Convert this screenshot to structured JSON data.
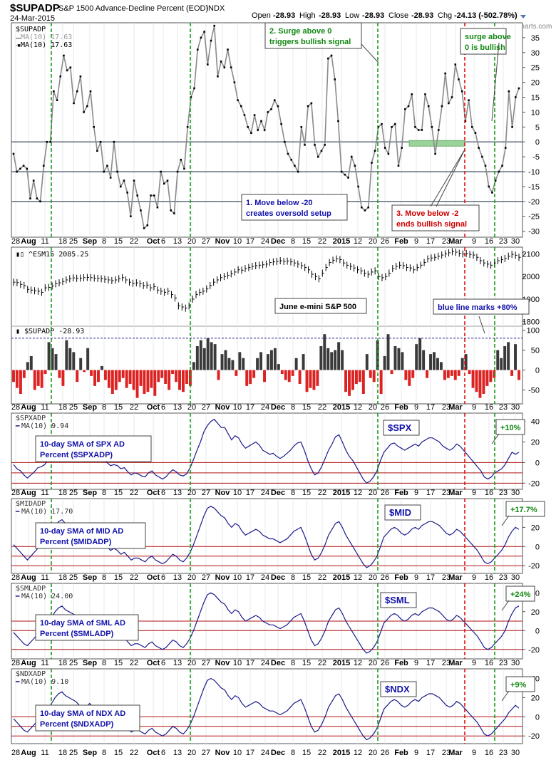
{
  "header": {
    "symbol": "$SUPADP",
    "description": "S&P 1500 Advance-Decline Percent (EOD)",
    "exchange": "INDX",
    "date": "24-Mar-2015",
    "open_label": "Open",
    "open": "-28.93",
    "high_label": "High",
    "high": "-28.93",
    "low_label": "Low",
    "low": "-28.93",
    "close_label": "Close",
    "close": "-28.93",
    "chg_label": "Chg",
    "chg": "-24.13 (-502.78%)",
    "watermark": "@StockCharts.com"
  },
  "colors": {
    "main_line": "#8a8a8a",
    "sma_line": "#1b1b8a",
    "green_vline": "#1a9a1a",
    "red_vline": "#dd1111",
    "hist_pos": "#3a3a3a",
    "hist_neg": "#dd2222",
    "ref_red": "#b01010",
    "annot_blue": "#1111aa",
    "annot_red": "#cc0000",
    "annot_green": "#118811",
    "green_box": "#9ad39a"
  },
  "x_axis_labels": [
    "28",
    "Aug",
    "11",
    "18",
    "25",
    "Sep",
    "8",
    "15",
    "22",
    "Oct",
    "6",
    "13",
    "20",
    "27",
    "Nov",
    "10",
    "17",
    "24",
    "Dec",
    "8",
    "15",
    "22",
    "2015",
    "12",
    "20",
    "26",
    "Feb",
    "9",
    "17",
    "23",
    "Mar",
    "9",
    "16",
    "23",
    "30"
  ],
  "chart_data": [
    {
      "panel": "main",
      "type": "line",
      "title": "$SUPADP",
      "legend": [
        "$SUPADP",
        "MA(10) 17.63",
        "MA(10) 17.63"
      ],
      "y_ticks": [
        "35",
        "30",
        "25",
        "20",
        "15",
        "10",
        "5",
        "0",
        "-5",
        "-10",
        "-15",
        "-20",
        "-25",
        "-30"
      ],
      "ylim": [
        -32,
        40
      ],
      "reference_lines": [
        0,
        -10,
        -20
      ],
      "values": [
        -4,
        -10,
        -9,
        -8,
        -9,
        -19,
        -13,
        -19,
        -20,
        -8,
        0,
        0,
        17,
        14,
        22,
        29,
        24,
        25,
        13,
        17,
        22,
        10,
        12,
        17,
        5,
        -3,
        0,
        -10,
        -8,
        -12,
        0,
        -10,
        -15,
        -13,
        -17,
        -25,
        -13,
        -18,
        -23,
        -29,
        -28,
        -18,
        -18,
        -22,
        -10,
        -14,
        -13,
        -23,
        -24,
        -10,
        -6,
        -9,
        5,
        15,
        18,
        31,
        35,
        37,
        26,
        34,
        39,
        22,
        27,
        25,
        31,
        25,
        20,
        14,
        12,
        9,
        5,
        3,
        9,
        4,
        7,
        4,
        10,
        11,
        14,
        12,
        6,
        0,
        -4,
        -6,
        -8,
        -10,
        5,
        -1,
        12,
        13,
        -1,
        -5,
        -3,
        -1,
        28,
        29,
        21,
        7,
        -10,
        -11,
        -12,
        -5,
        -8,
        -15,
        -22,
        -23,
        -22,
        -7,
        -3,
        5,
        6,
        -2,
        -4,
        5,
        6,
        -8,
        -2,
        11,
        12,
        16,
        5,
        4,
        4,
        16,
        12,
        5,
        -4,
        4,
        12,
        23,
        13,
        15,
        26,
        21,
        17,
        7,
        14,
        5,
        3,
        -2,
        -5,
        -8,
        -15,
        -17,
        -13,
        -10,
        -8,
        -2,
        17,
        5,
        15,
        18
      ],
      "annotations": [
        {
          "text": "2. Surge above 0 triggers bullish signal",
          "lines": [
            "2. Surge above 0",
            "triggers bullish signal"
          ],
          "color": "green"
        },
        {
          "text": "surge above 0 is bullish",
          "lines": [
            "surge above",
            "0 is bullish"
          ],
          "color": "green"
        },
        {
          "text": "1. Move below -20 creates oversold setup",
          "lines": [
            "1. Move below -20",
            "creates oversold setup"
          ],
          "color": "blue"
        },
        {
          "text": "3. Move below -2 ends bullish signal",
          "lines": [
            "3. Move below -2",
            "ends bullish signal"
          ],
          "color": "red"
        }
      ]
    },
    {
      "panel": "price",
      "type": "ohlc",
      "title": "^ESM15 2085.25",
      "y_ticks": [
        "2100",
        "2000",
        "1900",
        "1800"
      ],
      "ylim": [
        1780,
        2130
      ],
      "values": [
        1975,
        1973,
        1965,
        1960,
        1943,
        1940,
        1937,
        1935,
        1930,
        1950,
        1952,
        1958,
        1968,
        1972,
        1978,
        1985,
        1990,
        1994,
        1992,
        1993,
        1995,
        1996,
        1995,
        1993,
        1992,
        1990,
        1988,
        1985,
        1982,
        1985,
        1990,
        1995,
        1985,
        1975,
        1970,
        1972,
        1968,
        1960,
        1962,
        1950,
        1955,
        1940,
        1935,
        1930,
        1935,
        1920,
        1905,
        1870,
        1865,
        1860,
        1870,
        1900,
        1920,
        1930,
        1935,
        1945,
        1960,
        1975,
        1985,
        1995,
        2000,
        2005,
        2012,
        2020,
        2030,
        2028,
        2035,
        2040,
        2045,
        2048,
        2050,
        2052,
        2055,
        2062,
        2065,
        2067,
        2070,
        2067,
        2068,
        2065,
        2060,
        2055,
        2048,
        2040,
        2030,
        2010,
        2000,
        1990,
        2015,
        2040,
        2062,
        2072,
        2078,
        2075,
        2060,
        2050,
        2045,
        2038,
        2030,
        2025,
        2015,
        2010,
        2020,
        2025,
        2000,
        1995,
        2000,
        2015,
        2035,
        2045,
        2050,
        2048,
        2040,
        2038,
        2030,
        2040,
        2050,
        2062,
        2078,
        2082,
        2085,
        2090,
        2095,
        2100,
        2105,
        2110,
        2108,
        2103,
        2100,
        2102,
        2098,
        2095,
        2085,
        2070,
        2060,
        2055,
        2050,
        2060,
        2070,
        2075,
        2080,
        2090,
        2098,
        2094,
        2085
      ],
      "annotations": [
        {
          "text": "June e-mini S&P 500",
          "color": "black"
        },
        {
          "text": "blue line marks +80%",
          "color": "blue"
        }
      ]
    },
    {
      "panel": "histogram",
      "type": "bar",
      "title": "$SUPADP -28.93",
      "y_ticks": [
        "100",
        "50",
        "0",
        "-50"
      ],
      "ylim": [
        -85,
        110
      ],
      "reference_lines": [
        80
      ],
      "values": [
        -30,
        -45,
        -60,
        -20,
        20,
        35,
        -50,
        -40,
        -45,
        -10,
        70,
        55,
        40,
        -20,
        -40,
        75,
        55,
        45,
        -30,
        30,
        -5,
        55,
        -15,
        -40,
        -30,
        10,
        -25,
        -45,
        -60,
        -50,
        -30,
        -20,
        -45,
        -35,
        -50,
        -70,
        -40,
        -60,
        -55,
        -45,
        -65,
        -30,
        -20,
        -35,
        -50,
        -10,
        -30,
        -50,
        -55,
        -35,
        -40,
        20,
        60,
        75,
        55,
        80,
        70,
        65,
        -25,
        40,
        50,
        30,
        25,
        -15,
        45,
        30,
        -40,
        -35,
        -20,
        30,
        45,
        -30,
        40,
        50,
        55,
        15,
        -10,
        -25,
        -30,
        -15,
        30,
        -35,
        40,
        -55,
        -45,
        -50,
        -40,
        60,
        90,
        55,
        45,
        50,
        70,
        50,
        -55,
        -65,
        -50,
        -35,
        -30,
        -60,
        40,
        -20,
        -30,
        75,
        -60,
        35,
        90,
        -10,
        60,
        55,
        45,
        -25,
        -40,
        -20,
        65,
        80,
        50,
        -20,
        40,
        45,
        30,
        20,
        -25,
        -20,
        -15,
        -25,
        -15,
        30,
        40,
        -10,
        -45,
        -55,
        -70,
        -60,
        -40,
        -30,
        -20,
        50,
        30,
        60,
        70,
        -15,
        65,
        -25
      ],
      "annotations": []
    },
    {
      "panel": "spx",
      "type": "line",
      "title": "$SPXADP",
      "legend": [
        "$SPXADP",
        "MA(10) 9.94"
      ],
      "label": "$SPX",
      "change": "+10%",
      "y_ticks": [
        "40",
        "20",
        "0",
        "-20"
      ],
      "ylim": [
        -26,
        48
      ],
      "reference_lines": [
        0,
        -10,
        -20
      ],
      "values": [
        -2,
        -6,
        -8,
        -12,
        -15,
        -12,
        -9,
        -5,
        -4,
        -2,
        3,
        9,
        14,
        18,
        19,
        17,
        15,
        15,
        12,
        8,
        6,
        9,
        12,
        8,
        6,
        4,
        3,
        0,
        -3,
        -2,
        -3,
        -6,
        -5,
        -9,
        -12,
        -10,
        -11,
        -13,
        -14,
        -10,
        -8,
        -12,
        -14,
        -16,
        -14,
        -10,
        -7,
        -9,
        -12,
        -13,
        -11,
        -5,
        3,
        12,
        20,
        30,
        36,
        40,
        42,
        38,
        34,
        34,
        28,
        22,
        26,
        24,
        18,
        14,
        16,
        18,
        20,
        17,
        12,
        10,
        8,
        9,
        6,
        4,
        6,
        9,
        12,
        16,
        19,
        20,
        12,
        2,
        -6,
        -12,
        -10,
        -4,
        4,
        12,
        18,
        25,
        27,
        20,
        12,
        6,
        2,
        -4,
        -10,
        -16,
        -20,
        -18,
        -14,
        -8,
        2,
        10,
        14,
        18,
        19,
        16,
        14,
        12,
        14,
        16,
        18,
        16,
        20,
        22,
        24,
        24,
        22,
        20,
        16,
        14,
        12,
        14,
        18,
        16,
        12,
        8,
        4,
        0,
        -4,
        -8,
        -14,
        -16,
        -14,
        -10,
        -8,
        -6,
        -2,
        4,
        10,
        8,
        10
      ]
    },
    {
      "panel": "mid",
      "type": "line",
      "title": "$MIDADP",
      "legend": [
        "$MIDADP",
        "MA(10) 17.70"
      ],
      "label": "$MID",
      "change": "+17.7%",
      "y_ticks": [
        "40",
        "20",
        "0",
        "-20"
      ],
      "ylim": [
        -28,
        50
      ],
      "reference_lines": [
        0,
        -10,
        -20
      ],
      "values": [
        2,
        -2,
        -6,
        -10,
        -14,
        -10,
        -6,
        -2,
        0,
        4,
        10,
        16,
        22,
        26,
        28,
        24,
        22,
        20,
        18,
        14,
        10,
        12,
        16,
        12,
        8,
        6,
        4,
        0,
        -4,
        -2,
        -4,
        -8,
        -6,
        -10,
        -14,
        -12,
        -12,
        -14,
        -16,
        -12,
        -10,
        -14,
        -16,
        -18,
        -16,
        -12,
        -8,
        -10,
        -14,
        -16,
        -12,
        -6,
        2,
        12,
        22,
        32,
        40,
        42,
        40,
        36,
        32,
        30,
        24,
        20,
        24,
        22,
        16,
        12,
        14,
        16,
        18,
        16,
        12,
        10,
        8,
        8,
        6,
        4,
        6,
        8,
        12,
        16,
        18,
        20,
        12,
        2,
        -8,
        -14,
        -12,
        -6,
        2,
        12,
        18,
        24,
        26,
        20,
        12,
        6,
        0,
        -6,
        -12,
        -18,
        -22,
        -20,
        -16,
        -10,
        0,
        10,
        14,
        18,
        20,
        18,
        14,
        12,
        14,
        18,
        20,
        18,
        22,
        24,
        26,
        26,
        24,
        22,
        18,
        14,
        12,
        14,
        18,
        16,
        12,
        8,
        4,
        0,
        -4,
        -10,
        -16,
        -18,
        -16,
        -12,
        -8,
        -4,
        2,
        10,
        16,
        20,
        18
      ]
    },
    {
      "panel": "sml",
      "type": "line",
      "title": "$SMLADP",
      "legend": [
        "$SMLADP",
        "MA(10) 24.00"
      ],
      "label": "$SML",
      "change": "+24%",
      "y_ticks": [
        "40",
        "20",
        "0",
        "-20"
      ],
      "ylim": [
        -30,
        50
      ],
      "reference_lines": [
        10,
        0,
        -20
      ],
      "values": [
        -2,
        -6,
        -10,
        -14,
        -16,
        -12,
        -8,
        -4,
        -2,
        2,
        8,
        14,
        20,
        24,
        26,
        22,
        20,
        18,
        16,
        12,
        8,
        10,
        14,
        10,
        6,
        4,
        2,
        -2,
        -6,
        -4,
        -6,
        -10,
        -8,
        -12,
        -16,
        -14,
        -14,
        -16,
        -18,
        -14,
        -12,
        -16,
        -18,
        -20,
        -18,
        -14,
        -10,
        -12,
        -16,
        -18,
        -14,
        -8,
        0,
        10,
        20,
        30,
        38,
        40,
        38,
        34,
        30,
        28,
        22,
        18,
        22,
        20,
        14,
        10,
        12,
        14,
        16,
        14,
        10,
        8,
        6,
        6,
        4,
        2,
        4,
        6,
        10,
        14,
        16,
        18,
        10,
        0,
        -10,
        -16,
        -14,
        -8,
        0,
        10,
        16,
        22,
        24,
        18,
        10,
        4,
        -2,
        -8,
        -14,
        -20,
        -24,
        -22,
        -18,
        -12,
        -2,
        8,
        12,
        16,
        18,
        16,
        12,
        10,
        12,
        16,
        18,
        16,
        20,
        22,
        24,
        24,
        22,
        20,
        16,
        12,
        10,
        12,
        16,
        14,
        10,
        6,
        2,
        -2,
        -6,
        -12,
        -18,
        -20,
        -18,
        -14,
        -10,
        -6,
        0,
        10,
        18,
        24,
        26
      ]
    },
    {
      "panel": "ndx",
      "type": "line",
      "title": "$NDXADP",
      "legend": [
        "$NDXADP",
        "MA(10) 9.10"
      ],
      "label": "$NDX",
      "change": "+9%",
      "y_ticks": [
        "40",
        "20",
        "0",
        "-20"
      ],
      "ylim": [
        -28,
        50
      ],
      "reference_lines": [
        0,
        -10,
        -20
      ],
      "values": [
        -2,
        -6,
        -10,
        -14,
        -16,
        -12,
        -8,
        -4,
        -2,
        2,
        8,
        14,
        20,
        24,
        26,
        22,
        20,
        18,
        16,
        12,
        8,
        10,
        14,
        10,
        6,
        4,
        2,
        -2,
        -6,
        -4,
        -6,
        -10,
        -8,
        -12,
        -16,
        -14,
        -14,
        -16,
        -18,
        -14,
        -12,
        -16,
        -18,
        -20,
        -18,
        -14,
        -10,
        -12,
        -16,
        -18,
        -14,
        -8,
        0,
        10,
        20,
        30,
        38,
        40,
        38,
        34,
        30,
        28,
        22,
        18,
        22,
        20,
        14,
        10,
        12,
        14,
        16,
        14,
        10,
        8,
        6,
        6,
        4,
        2,
        4,
        6,
        10,
        14,
        16,
        18,
        10,
        0,
        -10,
        -16,
        -14,
        -8,
        0,
        10,
        16,
        22,
        24,
        18,
        10,
        4,
        -2,
        -8,
        -14,
        -20,
        -24,
        -22,
        -18,
        -12,
        -2,
        8,
        12,
        16,
        18,
        16,
        12,
        10,
        12,
        16,
        18,
        16,
        20,
        22,
        24,
        24,
        22,
        20,
        16,
        12,
        10,
        12,
        16,
        14,
        10,
        6,
        2,
        -2,
        -6,
        -12,
        -18,
        -20,
        -18,
        -14,
        -10,
        -6,
        -2,
        4,
        8,
        12,
        9
      ]
    }
  ],
  "panel_annotations": {
    "spx": [
      "10-day SMA of SPX AD",
      "Percent ($SPXADP)"
    ],
    "mid": [
      "10-day SMA of MID AD",
      "Percent ($MIDADP)"
    ],
    "sml": [
      "10-day SMA of SML AD",
      "Percent ($SMLADP)"
    ],
    "ndx": [
      "10-day SMA of NDX AD",
      "Percent ($NDXADP)"
    ]
  }
}
